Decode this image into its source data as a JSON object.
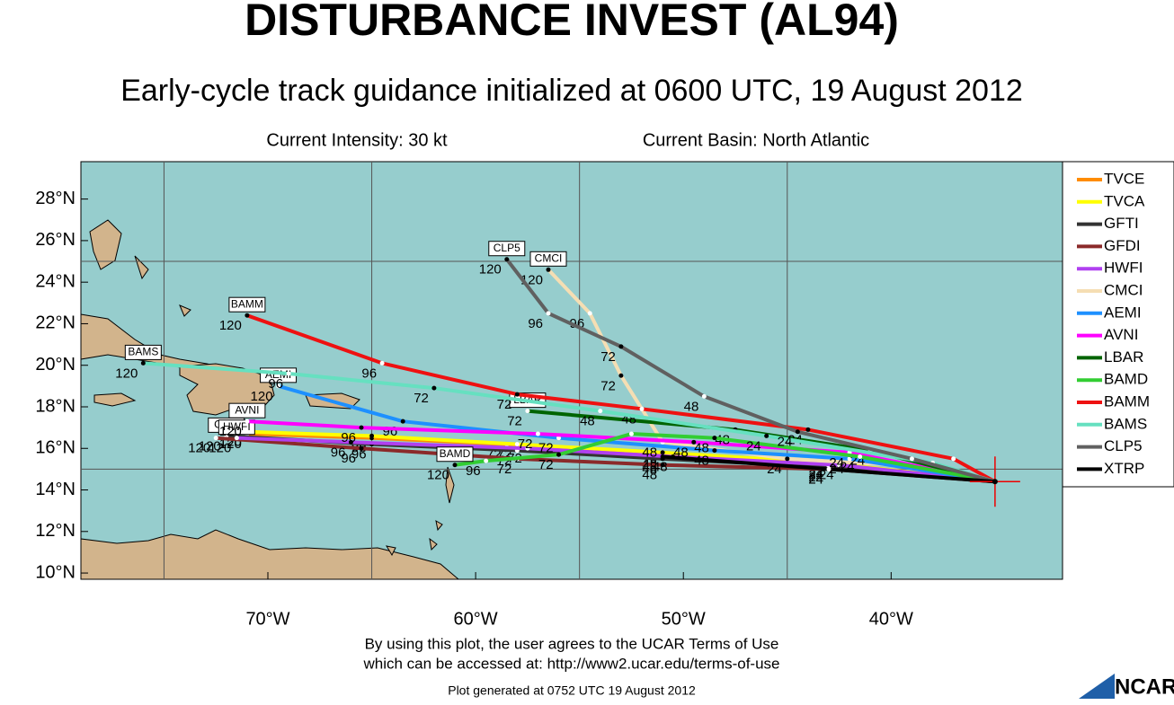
{
  "header": {
    "title": "DISTURBANCE INVEST (AL94)",
    "subtitle": "Early-cycle track guidance initialized at 0600 UTC, 19 August 2012",
    "intensity": "Current Intensity: 30 kt",
    "basin": "Current Basin: North Atlantic"
  },
  "map": {
    "lonlim": [
      -79,
      -31.75
    ],
    "latlim": [
      9.7,
      29.8
    ],
    "lat_ticks": [
      {
        "value": 10,
        "label": "10°N"
      },
      {
        "value": 12,
        "label": "12°N"
      },
      {
        "value": 14,
        "label": "14°N"
      },
      {
        "value": 16,
        "label": "16°N"
      },
      {
        "value": 18,
        "label": "18°N"
      },
      {
        "value": 20,
        "label": "20°N"
      },
      {
        "value": 22,
        "label": "22°N"
      },
      {
        "value": 24,
        "label": "24°N"
      },
      {
        "value": 26,
        "label": "26°N"
      },
      {
        "value": 28,
        "label": "28°N"
      }
    ],
    "lon_ticks": [
      {
        "value": -70,
        "label": "70°W"
      },
      {
        "value": -60,
        "label": "60°W"
      },
      {
        "value": -50,
        "label": "50°W"
      },
      {
        "value": -40,
        "label": "40°W"
      }
    ],
    "grid_lon": [
      -75,
      -65,
      -55,
      -45
    ],
    "grid_lat": [
      15,
      25
    ],
    "current_position": {
      "lon": -35,
      "lat": 14.4
    },
    "tracks": [
      {
        "name": "TVCE",
        "color": "#ff8c00",
        "lon": [
          -35,
          -43,
          -51,
          -58.5,
          -65,
          -71
        ],
        "lat": [
          14.4,
          15.2,
          15.7,
          16.2,
          16.5,
          16.7
        ],
        "hour_labels": [
          "24",
          "48",
          "72",
          "96",
          "120"
        ]
      },
      {
        "name": "TVCA",
        "color": "#ffff00",
        "lon": [
          -35,
          -43,
          -51,
          -58,
          -65,
          -71
        ],
        "lat": [
          14.4,
          15.3,
          15.8,
          16.2,
          16.6,
          16.8
        ],
        "hour_labels": [
          "24",
          "48",
          "72",
          "96",
          "120"
        ]
      },
      {
        "name": "GFTI",
        "color": "#333333",
        "lon": [
          -35,
          -43,
          -51,
          -58,
          -65,
          -72
        ],
        "lat": [
          14.4,
          15.1,
          15.5,
          15.9,
          16.2,
          16.6
        ],
        "hour_labels": [
          "24",
          "48",
          "72",
          "96",
          "120"
        ],
        "boxed": true
      },
      {
        "name": "GFDI",
        "color": "#8b2a2a",
        "lon": [
          -35,
          -43,
          -51,
          -58,
          -65.5,
          -72.5
        ],
        "lat": [
          14.4,
          15.0,
          15.2,
          15.5,
          16.0,
          16.5
        ],
        "hour_labels": [
          "24",
          "48",
          "72",
          "96",
          "120"
        ]
      },
      {
        "name": "HWFI",
        "color": "#b040f0",
        "lon": [
          -35,
          -42.5,
          -50.5,
          -57.5,
          -66,
          -71.5
        ],
        "lat": [
          14.4,
          15.2,
          15.6,
          16.0,
          16.3,
          16.5
        ],
        "hour_labels": [
          "24",
          "48",
          "72",
          "96",
          "120"
        ],
        "boxed": true
      },
      {
        "name": "CMCI",
        "color": "#f5deb3",
        "lon": [
          -35,
          -38,
          -45,
          -51,
          -53,
          -54.5,
          -56.5
        ],
        "lat": [
          14.4,
          15.1,
          15.5,
          16.3,
          19.5,
          22.5,
          24.6
        ],
        "hour_labels": [
          "",
          "24",
          "48",
          "72",
          "96",
          "120"
        ],
        "boxed": true
      },
      {
        "name": "AEMI",
        "color": "#1e90ff",
        "lon": [
          -35,
          -42,
          -48.5,
          -56,
          -63.5,
          -69.5
        ],
        "lat": [
          14.4,
          15.5,
          15.9,
          16.5,
          17.3,
          19.0
        ],
        "hour_labels": [
          "24",
          "48",
          "72",
          "96",
          "120"
        ],
        "boxed": true
      },
      {
        "name": "AVNI",
        "color": "#ff00ff",
        "lon": [
          -35,
          -42,
          -49.5,
          -57,
          -65.5,
          -71
        ],
        "lat": [
          14.4,
          15.8,
          16.3,
          16.7,
          17.0,
          17.3
        ],
        "hour_labels": [
          "24",
          "48",
          "72",
          "96",
          "120"
        ],
        "boxed": true
      },
      {
        "name": "LBAR",
        "color": "#006400",
        "lon": [
          -35,
          -41,
          -47.5,
          -57.5
        ],
        "lat": [
          14.4,
          15.9,
          16.9,
          17.8
        ],
        "hour_labels": [
          "24",
          "48",
          "72"
        ],
        "boxed": true
      },
      {
        "name": "BAMD",
        "color": "#32cd32",
        "lon": [
          -35,
          -41.5,
          -48.5,
          -52.5,
          -56,
          -59.5,
          -61
        ],
        "lat": [
          14.4,
          15.6,
          16.5,
          16.7,
          15.7,
          15.4,
          15.2
        ],
        "hour_labels": [
          "24",
          "48",
          "",
          "72",
          "96",
          "120"
        ],
        "boxed": true
      },
      {
        "name": "BAMM",
        "color": "#ee1111",
        "lon": [
          -35,
          -37,
          -44,
          -52,
          -58,
          -64.5,
          -71
        ],
        "lat": [
          14.4,
          15.5,
          16.9,
          17.9,
          18.6,
          20.1,
          22.4
        ],
        "hour_labels": [
          "",
          "24",
          "48",
          "72",
          "96",
          "120"
        ],
        "boxed": true
      },
      {
        "name": "BAMS",
        "color": "#66e0c0",
        "lon": [
          -35,
          -38,
          -46,
          -54,
          -62,
          -69,
          -76
        ],
        "lat": [
          14.4,
          15.3,
          16.6,
          17.8,
          18.9,
          19.6,
          20.1
        ],
        "hour_labels": [
          "",
          "24",
          "48",
          "72",
          "96",
          "120"
        ],
        "boxed": true
      },
      {
        "name": "CLP5",
        "color": "#606060",
        "lon": [
          -35,
          -39,
          -44.5,
          -49,
          -53,
          -56.5,
          -58.5
        ],
        "lat": [
          14.4,
          15.5,
          16.8,
          18.5,
          20.9,
          22.5,
          25.1
        ],
        "hour_labels": [
          "",
          "24",
          "48",
          "72",
          "96",
          "120"
        ],
        "boxed": true
      },
      {
        "name": "XTRP",
        "color": "#000000",
        "lon": [
          -35,
          -43,
          -51
        ],
        "lat": [
          14.4,
          15.0,
          15.6
        ],
        "hour_labels": [
          "24",
          "48"
        ]
      }
    ]
  },
  "footer": {
    "terms_1": "By using this plot, the user agrees to the UCAR Terms of Use",
    "terms_2": "which can be accessed at: http://www2.ucar.edu/terms-of-use",
    "generated": "Plot generated at 0752 UTC   19 August 2012",
    "logo": "NCAR"
  }
}
